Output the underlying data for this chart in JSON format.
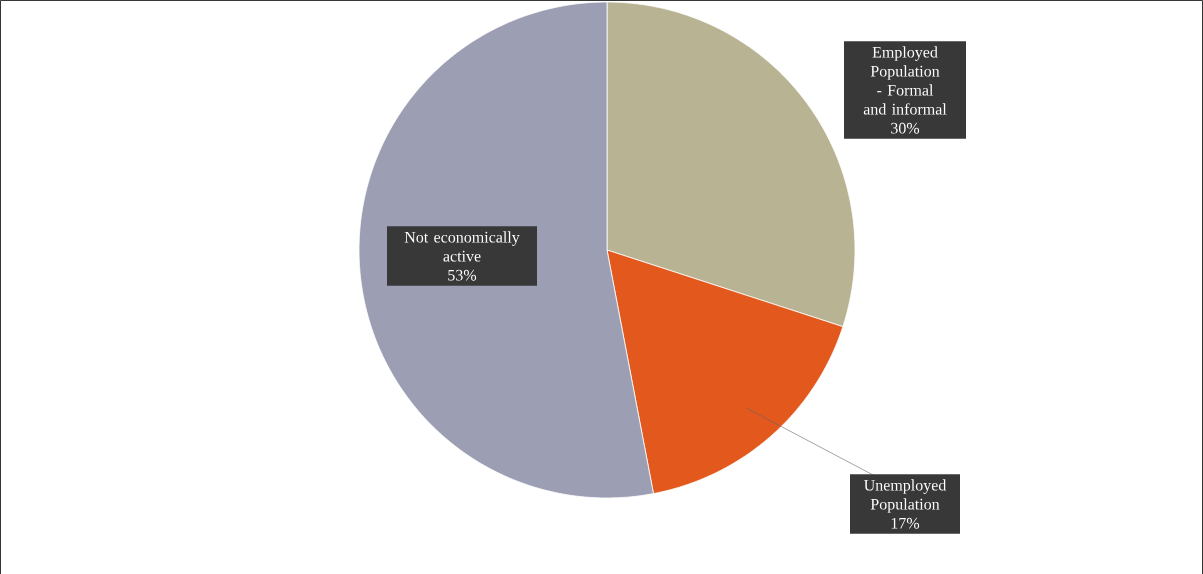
{
  "chart_data": {
    "type": "pie",
    "categories": [
      "Employed Population - Formal and informal",
      "Unemployed Population",
      "Not economically active"
    ],
    "values": [
      30,
      17,
      53
    ],
    "colors": [
      "#b8b493",
      "#e2581d",
      "#9c9eb3"
    ],
    "value_labels": [
      "30%",
      "17%",
      "53%"
    ]
  }
}
